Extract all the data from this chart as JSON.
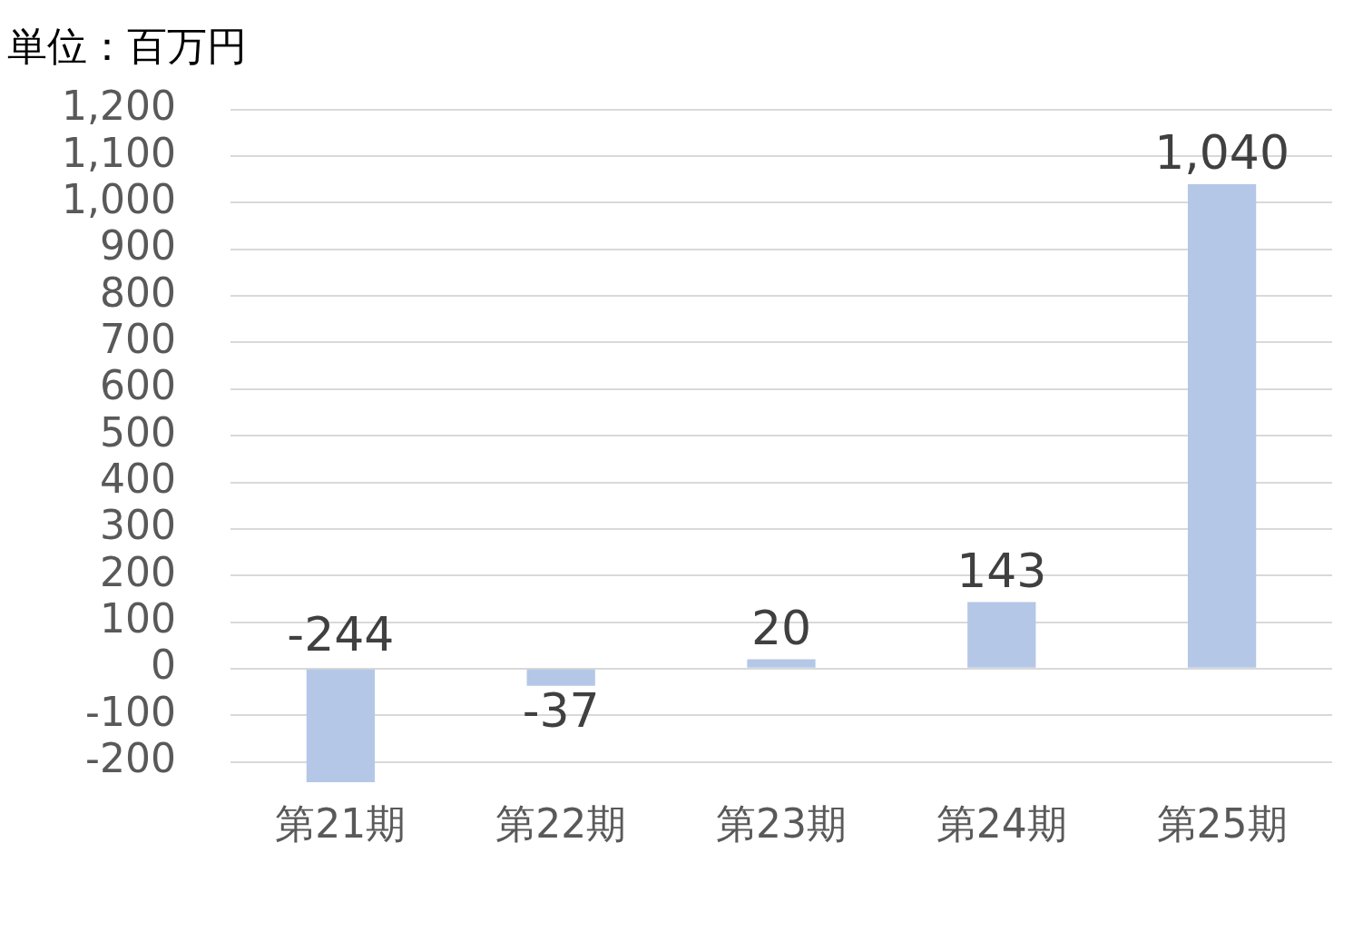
{
  "chart_data": {
    "type": "bar",
    "title": "単位：百万円",
    "categories": [
      "第21期",
      "第22期",
      "第23期",
      "第24期",
      "第25期"
    ],
    "values": [
      -244,
      -37,
      20,
      143,
      1040
    ],
    "color": "#b4c7e7",
    "ylim": [
      -250,
      1200
    ],
    "yticks": [
      -200,
      -100,
      0,
      100,
      200,
      300,
      400,
      500,
      600,
      700,
      800,
      900,
      {
        "value": 1000,
        "label": "1,000"
      },
      {
        "value": 1100,
        "label": "1,100"
      },
      {
        "value": 1200,
        "label": "1,200"
      }
    ],
    "value_labels": [
      "-244",
      "-37",
      "20",
      "143",
      "1,040"
    ],
    "grid": "y"
  }
}
